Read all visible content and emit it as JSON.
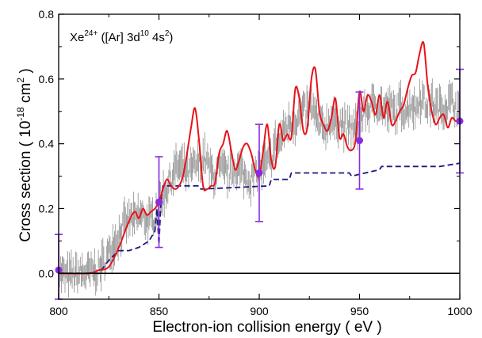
{
  "chart_data": {
    "type": "line",
    "annotation": {
      "prefix": "Xe",
      "charge": "24+",
      "config_open": " ([Ar] 3d",
      "sup1": "10",
      "config_mid": " 4s",
      "sup2": "2",
      "config_close": ")"
    },
    "xlabel": "Electron-ion collision energy ( eV )",
    "ylabel": {
      "part1": "Cross section ( 10",
      "exp1": "-18",
      "part2": " cm",
      "exp2": "2",
      "part3": " )"
    },
    "xlim": [
      800,
      1000
    ],
    "ylim": [
      -0.08,
      0.8
    ],
    "x_ticks": [
      800,
      850,
      900,
      950,
      1000
    ],
    "x_tick_labels": [
      "800",
      "850",
      "900",
      "950",
      "1000"
    ],
    "y_ticks": [
      0.0,
      0.2,
      0.4,
      0.6,
      0.8
    ],
    "y_tick_labels": [
      "0.0",
      "0.2",
      "0.4",
      "0.6",
      "0.8"
    ],
    "grid": false,
    "colors": {
      "experiment": "#8c8c8c",
      "theory_solid": "#e8121a",
      "theory_dashed": "#1a1a80",
      "points": "#8a2be2",
      "zero_line": "#000000"
    },
    "series": [
      {
        "style": "grey-scatter-error",
        "x": [
          800,
          805,
          810,
          815,
          820,
          825,
          827,
          830,
          833,
          836,
          838,
          840,
          843,
          846,
          848,
          850,
          852,
          855,
          858,
          860,
          862,
          865,
          868,
          870,
          873,
          876,
          878,
          880,
          883,
          886,
          888,
          890,
          893,
          896,
          898,
          900,
          903,
          906,
          908,
          910,
          913,
          916,
          918,
          920,
          923,
          926,
          928,
          930,
          933,
          936,
          938,
          940,
          943,
          946,
          948,
          950,
          953,
          956,
          958,
          960,
          963,
          966,
          968,
          970,
          973,
          976,
          978,
          980,
          983,
          986,
          988,
          990,
          993,
          996,
          998,
          1000
        ],
        "values": [
          0.0,
          -0.01,
          0.0,
          0.0,
          0.01,
          0.06,
          0.09,
          0.12,
          0.15,
          0.17,
          0.16,
          0.18,
          0.17,
          0.16,
          0.18,
          0.21,
          0.24,
          0.28,
          0.32,
          0.33,
          0.32,
          0.31,
          0.33,
          0.34,
          0.36,
          0.31,
          0.3,
          0.32,
          0.31,
          0.31,
          0.33,
          0.32,
          0.3,
          0.29,
          0.3,
          0.32,
          0.33,
          0.35,
          0.4,
          0.4,
          0.45,
          0.47,
          0.47,
          0.49,
          0.5,
          0.52,
          0.48,
          0.45,
          0.45,
          0.48,
          0.46,
          0.47,
          0.45,
          0.45,
          0.44,
          0.47,
          0.5,
          0.51,
          0.53,
          0.52,
          0.5,
          0.51,
          0.49,
          0.52,
          0.5,
          0.53,
          0.5,
          0.55,
          0.52,
          0.53,
          0.51,
          0.51,
          0.52,
          0.53,
          0.52,
          0.47
        ]
      },
      {
        "style": "red-solid",
        "x": [
          800,
          815,
          820,
          825,
          830,
          835,
          838,
          840,
          842,
          844,
          846,
          848,
          850,
          852,
          854,
          856,
          858,
          860,
          862,
          864,
          866,
          868,
          870,
          872,
          874,
          876,
          878,
          880,
          882,
          884,
          886,
          888,
          890,
          892,
          894,
          896,
          898,
          900,
          902,
          904,
          906,
          908,
          910,
          912,
          914,
          916,
          918,
          920,
          922,
          924,
          926,
          928,
          930,
          932,
          934,
          936,
          938,
          940,
          942,
          944,
          946,
          948,
          950,
          952,
          954,
          956,
          958,
          960,
          962,
          964,
          966,
          968,
          970,
          972,
          974,
          976,
          978,
          980,
          982,
          984,
          986,
          988,
          990,
          992,
          994,
          996,
          998,
          1000
        ],
        "values": [
          0.0,
          0.0,
          0.01,
          0.02,
          0.08,
          0.16,
          0.19,
          0.17,
          0.2,
          0.18,
          0.19,
          0.2,
          0.22,
          0.26,
          0.29,
          0.27,
          0.26,
          0.27,
          0.3,
          0.37,
          0.45,
          0.51,
          0.41,
          0.27,
          0.26,
          0.27,
          0.28,
          0.37,
          0.4,
          0.44,
          0.38,
          0.32,
          0.35,
          0.39,
          0.4,
          0.37,
          0.32,
          0.3,
          0.38,
          0.46,
          0.35,
          0.33,
          0.46,
          0.41,
          0.43,
          0.42,
          0.57,
          0.54,
          0.44,
          0.45,
          0.6,
          0.63,
          0.5,
          0.46,
          0.44,
          0.48,
          0.54,
          0.42,
          0.43,
          0.39,
          0.38,
          0.41,
          0.56,
          0.5,
          0.55,
          0.53,
          0.49,
          0.55,
          0.48,
          0.53,
          0.46,
          0.47,
          0.5,
          0.52,
          0.57,
          0.61,
          0.62,
          0.68,
          0.71,
          0.58,
          0.5,
          0.46,
          0.48,
          0.49,
          0.45,
          0.48,
          0.47,
          0.48
        ]
      },
      {
        "style": "blue-dashed",
        "x": [
          800,
          820,
          825,
          830,
          835,
          840,
          845,
          848,
          849,
          850,
          851,
          852,
          870,
          871,
          905,
          906,
          915,
          916,
          945,
          946,
          960,
          961,
          990,
          1000
        ],
        "values": [
          0.0,
          0.0,
          0.04,
          0.07,
          0.07,
          0.08,
          0.1,
          0.13,
          0.2,
          0.09,
          0.22,
          0.27,
          0.27,
          0.26,
          0.27,
          0.29,
          0.29,
          0.31,
          0.31,
          0.3,
          0.32,
          0.33,
          0.33,
          0.34
        ]
      },
      {
        "style": "violet-points",
        "x": [
          800,
          850,
          900,
          950,
          1000
        ],
        "values": [
          0.01,
          0.22,
          0.31,
          0.41,
          0.47
        ],
        "err": [
          0.11,
          0.14,
          0.15,
          0.15,
          0.16
        ]
      }
    ]
  }
}
